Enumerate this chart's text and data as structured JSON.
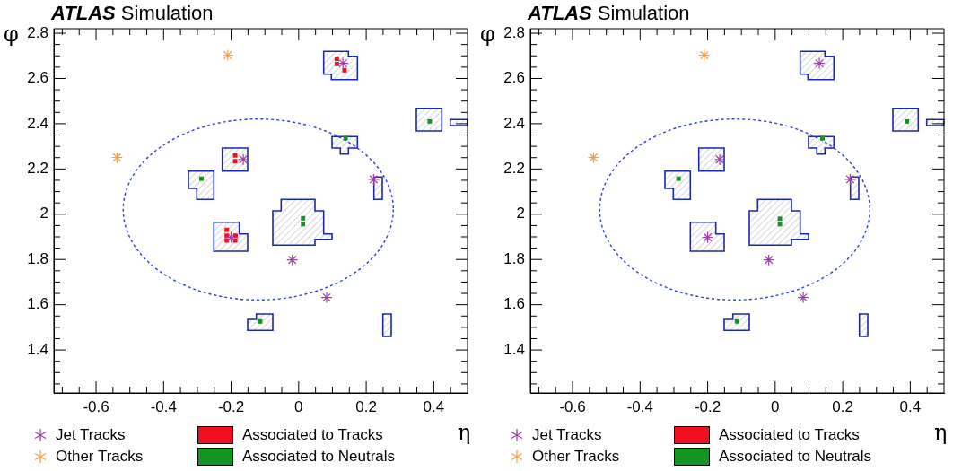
{
  "chart_data": [
    {
      "type": "scatter",
      "title": "ATLAS Simulation",
      "xlabel": "η",
      "ylabel": "φ",
      "xlim": [
        -0.725,
        0.5
      ],
      "ylim": [
        1.21,
        2.82
      ],
      "xticks": [
        {
          "value": -0.7,
          "label": null
        },
        {
          "value": -0.65,
          "label": null
        },
        -0.6,
        {
          "value": -0.55,
          "label": null
        },
        {
          "value": -0.5,
          "label": null
        },
        {
          "value": -0.45,
          "label": null
        },
        -0.4,
        {
          "value": -0.35,
          "label": null
        },
        {
          "value": -0.3,
          "label": null
        },
        {
          "value": -0.25,
          "label": null
        },
        -0.2,
        {
          "value": -0.15,
          "label": null
        },
        {
          "value": -0.1,
          "label": null
        },
        {
          "value": -0.05,
          "label": null
        },
        0,
        {
          "value": 0.05,
          "label": null
        },
        {
          "value": 0.1,
          "label": null
        },
        {
          "value": 0.15,
          "label": null
        },
        0.2,
        {
          "value": 0.25,
          "label": null
        },
        {
          "value": 0.3,
          "label": null
        },
        {
          "value": 0.35,
          "label": null
        },
        0.4,
        {
          "value": 0.45,
          "label": null
        }
      ],
      "yticks": [
        {
          "value": 1.25,
          "label": null
        },
        {
          "value": 1.3,
          "label": null
        },
        {
          "value": 1.35,
          "label": null
        },
        1.4,
        {
          "value": 1.45,
          "label": null
        },
        {
          "value": 1.5,
          "label": null
        },
        {
          "value": 1.55,
          "label": null
        },
        1.6,
        {
          "value": 1.65,
          "label": null
        },
        {
          "value": 1.7,
          "label": null
        },
        {
          "value": 1.75,
          "label": null
        },
        1.8,
        {
          "value": 1.85,
          "label": null
        },
        {
          "value": 1.9,
          "label": null
        },
        {
          "value": 1.95,
          "label": null
        },
        2,
        {
          "value": 2.05,
          "label": null
        },
        {
          "value": 2.1,
          "label": null
        },
        {
          "value": 2.15,
          "label": null
        },
        2.2,
        {
          "value": 2.25,
          "label": null
        },
        {
          "value": 2.3,
          "label": null
        },
        {
          "value": 2.35,
          "label": null
        },
        2.4,
        {
          "value": 2.45,
          "label": null
        },
        {
          "value": 2.5,
          "label": null
        },
        {
          "value": 2.55,
          "label": null
        },
        2.6,
        {
          "value": 2.65,
          "label": null
        },
        {
          "value": 2.7,
          "label": null
        },
        {
          "value": 2.75,
          "label": null
        },
        2.8
      ],
      "grid": false,
      "legend": "bottom",
      "series": [
        {
          "name": "Jet Tracks",
          "color": "#a040a8",
          "marker": "cross",
          "x": [
            0.131,
            -0.164,
            -0.2,
            -0.019,
            0.083,
            0.222
          ],
          "values": [
            2.667,
            2.242,
            1.898,
            1.798,
            1.632,
            2.154
          ]
        },
        {
          "name": "Other Tracks",
          "color": "#f8a040",
          "marker": "cross",
          "x": [
            -0.21,
            -0.538
          ],
          "values": [
            2.703,
            2.251
          ]
        },
        {
          "name": "Associated to Tracks",
          "color": "#f00f1e",
          "marker": "square",
          "x": [
            0.113,
            0.113,
            0.136,
            -0.188,
            -0.188,
            -0.213,
            -0.213,
            -0.187,
            -0.213,
            -0.188
          ],
          "values": [
            2.687,
            2.664,
            2.636,
            2.26,
            2.234,
            1.931,
            1.905,
            1.905,
            1.884,
            1.884
          ]
        },
        {
          "name": "Associated to Neutrals",
          "color": "#14961e",
          "marker": "square",
          "x": [
            0.139,
            0.388,
            -0.288,
            0.013,
            0.013,
            -0.114
          ],
          "values": [
            2.336,
            2.41,
            2.157,
            1.956,
            1.982,
            1.526
          ]
        }
      ]
    },
    {
      "type": "scatter",
      "title": "ATLAS Simulation",
      "xlabel": "η",
      "ylabel": "φ",
      "xlim": [
        -0.725,
        0.5
      ],
      "ylim": [
        1.21,
        2.82
      ],
      "xticks": [
        {
          "value": -0.7,
          "label": null
        },
        {
          "value": -0.65,
          "label": null
        },
        -0.6,
        {
          "value": -0.55,
          "label": null
        },
        {
          "value": -0.5,
          "label": null
        },
        {
          "value": -0.45,
          "label": null
        },
        -0.4,
        {
          "value": -0.35,
          "label": null
        },
        {
          "value": -0.3,
          "label": null
        },
        {
          "value": -0.25,
          "label": null
        },
        -0.2,
        {
          "value": -0.15,
          "label": null
        },
        {
          "value": -0.1,
          "label": null
        },
        {
          "value": -0.05,
          "label": null
        },
        0,
        {
          "value": 0.05,
          "label": null
        },
        {
          "value": 0.1,
          "label": null
        },
        {
          "value": 0.15,
          "label": null
        },
        0.2,
        {
          "value": 0.25,
          "label": null
        },
        {
          "value": 0.3,
          "label": null
        },
        {
          "value": 0.35,
          "label": null
        },
        0.4,
        {
          "value": 0.45,
          "label": null
        }
      ],
      "yticks": [
        {
          "value": 1.25,
          "label": null
        },
        {
          "value": 1.3,
          "label": null
        },
        {
          "value": 1.35,
          "label": null
        },
        1.4,
        {
          "value": 1.45,
          "label": null
        },
        {
          "value": 1.5,
          "label": null
        },
        {
          "value": 1.55,
          "label": null
        },
        1.6,
        {
          "value": 1.65,
          "label": null
        },
        {
          "value": 1.7,
          "label": null
        },
        {
          "value": 1.75,
          "label": null
        },
        1.8,
        {
          "value": 1.85,
          "label": null
        },
        {
          "value": 1.9,
          "label": null
        },
        {
          "value": 1.95,
          "label": null
        },
        2,
        {
          "value": 2.05,
          "label": null
        },
        {
          "value": 2.1,
          "label": null
        },
        {
          "value": 2.15,
          "label": null
        },
        2.2,
        {
          "value": 2.25,
          "label": null
        },
        {
          "value": 2.3,
          "label": null
        },
        {
          "value": 2.35,
          "label": null
        },
        2.4,
        {
          "value": 2.45,
          "label": null
        },
        {
          "value": 2.5,
          "label": null
        },
        {
          "value": 2.55,
          "label": null
        },
        2.6,
        {
          "value": 2.65,
          "label": null
        },
        {
          "value": 2.7,
          "label": null
        },
        {
          "value": 2.75,
          "label": null
        },
        2.8
      ],
      "grid": false,
      "legend": "bottom",
      "series": [
        {
          "name": "Jet Tracks",
          "color": "#a040a8",
          "marker": "cross",
          "x": [
            0.131,
            -0.164,
            -0.2,
            -0.019,
            0.083,
            0.222
          ],
          "values": [
            2.667,
            2.242,
            1.898,
            1.798,
            1.632,
            2.154
          ]
        },
        {
          "name": "Other Tracks",
          "color": "#f8a040",
          "marker": "cross",
          "x": [
            -0.21,
            -0.538
          ],
          "values": [
            2.703,
            2.251
          ]
        },
        {
          "name": "Associated to Tracks",
          "color": "#f00f1e",
          "marker": "square"
        },
        {
          "name": "Associated to Neutrals",
          "color": "#14961e",
          "marker": "square",
          "x": [
            0.14,
            0.39,
            -0.286,
            0.014,
            0.014,
            -0.113
          ],
          "values": [
            2.336,
            2.41,
            2.157,
            1.956,
            1.98,
            1.526
          ]
        }
      ]
    }
  ]
}
